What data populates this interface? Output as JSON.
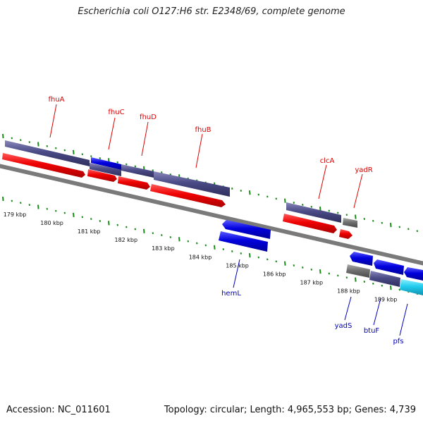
{
  "title": "Escherichia coli O127:H6 str. E2348/69, complete genome",
  "footer": {
    "accession": "Accession: NC_011601",
    "summary": "Topology: circular; Length: 4,965,553 bp; Genes: 4,739"
  },
  "kbp_labels": [
    "179 kbp",
    "180 kbp",
    "181 kbp",
    "182 kbp",
    "183 kbp",
    "184 kbp",
    "185 kbp",
    "186 kbp",
    "187 kbp",
    "188 kbp",
    "189 kbp"
  ],
  "gene_labels_top": [
    "fhuA",
    "fhuC",
    "fhuD",
    "fhuB",
    "clcA",
    "yadR"
  ],
  "gene_labels_bottom": [
    "hemL",
    "yadS",
    "btuF",
    "pfs"
  ],
  "colors": {
    "top_label": "#dd0000",
    "bottom_label": "#0000bb",
    "backbone": "#7a7a7a",
    "tick": "#1a8a1a",
    "cds_red": "#ee0000",
    "cds_blue": "#0000dd",
    "gene_purple": "#4a4a86",
    "gene_gray": "#707070",
    "gene_cyan": "#22ccee"
  }
}
